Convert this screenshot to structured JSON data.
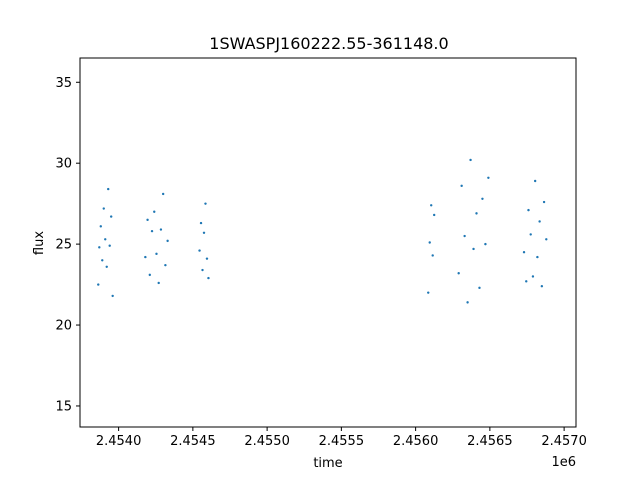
{
  "chart_data": {
    "type": "scatter",
    "title": "1SWASPJ160222.55-361148.0",
    "xlabel": "time",
    "ylabel": "flux",
    "x_offset_label": "1e6",
    "xlim": [
      2453740,
      2457080
    ],
    "ylim": [
      13.7,
      36.5
    ],
    "x_ticks": [
      2454000,
      2454500,
      2455000,
      2455500,
      2456000,
      2456500,
      2457000
    ],
    "x_tick_labels": [
      "2.4540",
      "2.4545",
      "2.4550",
      "2.4555",
      "2.4560",
      "2.4565",
      "2.4570"
    ],
    "y_ticks": [
      15,
      20,
      25,
      30,
      35
    ],
    "y_tick_labels": [
      "15",
      "20",
      "25",
      "30",
      "35"
    ],
    "grid": false,
    "marker_color": "#1f77b4",
    "series": [
      {
        "x": [
          2453863,
          2453870,
          2453880,
          2453890,
          2453900,
          2453910,
          2453920,
          2453930,
          2453940,
          2453950,
          2453960,
          2454180,
          2454195,
          2454210,
          2454225,
          2454240,
          2454255,
          2454270,
          2454285,
          2454300,
          2454315,
          2454330,
          2454545,
          2454555,
          2454565,
          2454575,
          2454585,
          2454595,
          2454605,
          2456085,
          2456095,
          2456105,
          2456115,
          2456125,
          2456290,
          2456310,
          2456330,
          2456350,
          2456370,
          2456390,
          2456410,
          2456430,
          2456450,
          2456470,
          2456490,
          2456730,
          2456745,
          2456760,
          2456775,
          2456790,
          2456805,
          2456820,
          2456835,
          2456850,
          2456865,
          2456880
        ],
        "y": [
          22.5,
          24.8,
          26.1,
          24.0,
          27.2,
          25.3,
          23.6,
          28.4,
          24.9,
          26.7,
          21.8,
          24.2,
          26.5,
          23.1,
          25.8,
          27.0,
          24.4,
          22.6,
          25.9,
          28.1,
          23.7,
          25.2,
          24.6,
          26.3,
          23.4,
          25.7,
          27.5,
          24.1,
          22.9,
          22.0,
          25.1,
          27.4,
          24.3,
          26.8,
          23.2,
          28.6,
          25.5,
          21.4,
          30.2,
          24.7,
          26.9,
          22.3,
          27.8,
          25.0,
          29.1,
          24.5,
          22.7,
          27.1,
          25.6,
          23.0,
          28.9,
          24.2,
          26.4,
          22.4,
          27.6,
          25.3
        ]
      }
    ]
  }
}
